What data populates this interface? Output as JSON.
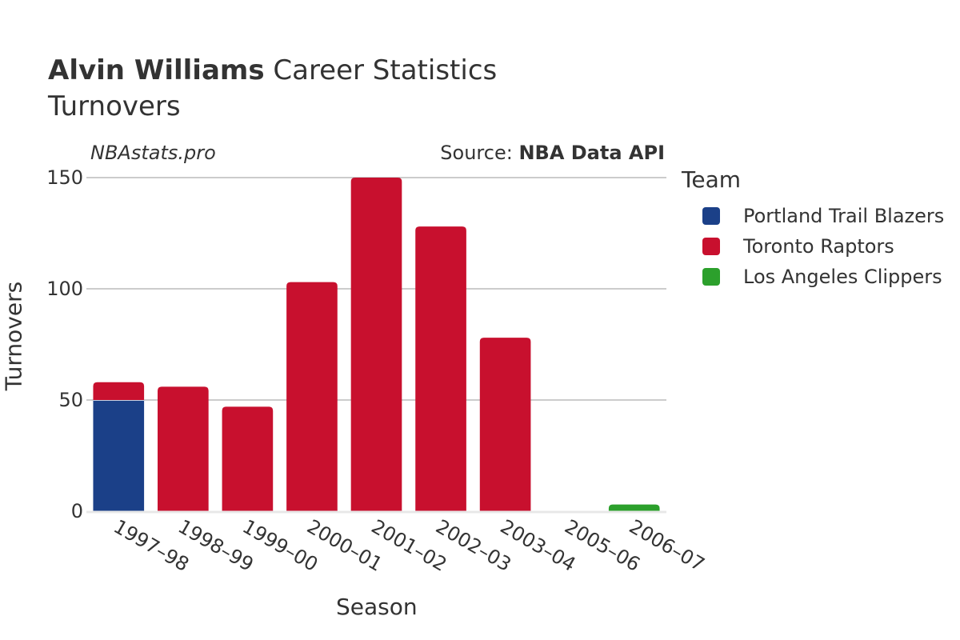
{
  "header": {
    "player_name": "Alvin Williams",
    "title_suffix": " Career Statistics",
    "subtitle": "Turnovers",
    "brand": "NBAstats.pro",
    "source_prefix": "Source: ",
    "source_name": "NBA Data API"
  },
  "legend": {
    "title": "Team",
    "items": [
      {
        "label": "Portland Trail Blazers",
        "color": "#1b4088"
      },
      {
        "label": "Toronto Raptors",
        "color": "#c8102e"
      },
      {
        "label": "Los Angeles Clippers",
        "color": "#2ca02c"
      }
    ]
  },
  "chart_data": {
    "type": "bar",
    "stacked": true,
    "xlabel": "Season",
    "ylabel": "Turnovers",
    "ylim": [
      0,
      150
    ],
    "yticks": [
      0,
      50,
      100,
      150
    ],
    "grid": true,
    "legend_position": "right",
    "categories": [
      "1997–98",
      "1998–99",
      "1999–00",
      "2000–01",
      "2001–02",
      "2002–03",
      "2003–04",
      "2005–06",
      "2006–07"
    ],
    "series": [
      {
        "name": "Portland Trail Blazers",
        "color": "#1b4088",
        "values": [
          50,
          0,
          0,
          0,
          0,
          0,
          0,
          0,
          0
        ]
      },
      {
        "name": "Toronto Raptors",
        "color": "#c8102e",
        "values": [
          8,
          56,
          47,
          103,
          150,
          128,
          78,
          0,
          0
        ]
      },
      {
        "name": "Los Angeles Clippers",
        "color": "#2ca02c",
        "values": [
          0,
          0,
          0,
          0,
          0,
          0,
          0,
          0,
          3
        ]
      }
    ]
  }
}
